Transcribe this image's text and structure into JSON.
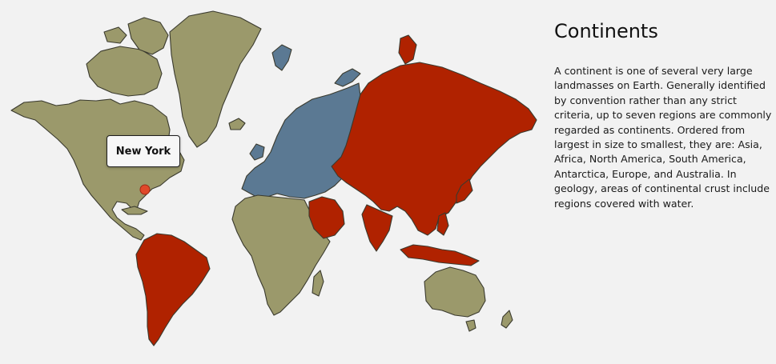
{
  "map": {
    "marker": {
      "label": "New York"
    },
    "colors": {
      "ocean": "#f2f2f2",
      "default_land": "#9b996b",
      "europe": "#5b7993",
      "highlight": "#b02200",
      "marker": "#e0482a"
    },
    "continents": [
      {
        "key": "north-america",
        "color": "#9b996b"
      },
      {
        "key": "greenland",
        "color": "#9b996b"
      },
      {
        "key": "south-america",
        "color": "#b02200"
      },
      {
        "key": "europe",
        "color": "#5b7993"
      },
      {
        "key": "africa",
        "color": "#9b996b"
      },
      {
        "key": "asia",
        "color": "#b02200"
      },
      {
        "key": "australia",
        "color": "#9b996b"
      }
    ]
  },
  "info": {
    "title": "Continents",
    "body": "A continent is one of several very large landmasses on Earth. Generally identified by convention rather than any strict criteria, up to seven regions are commonly regarded as continents. Ordered from largest in size to smallest, they are: Asia, Africa, North America, South America, Antarctica, Europe, and Australia. In geology, areas of continental crust include regions covered with water."
  }
}
